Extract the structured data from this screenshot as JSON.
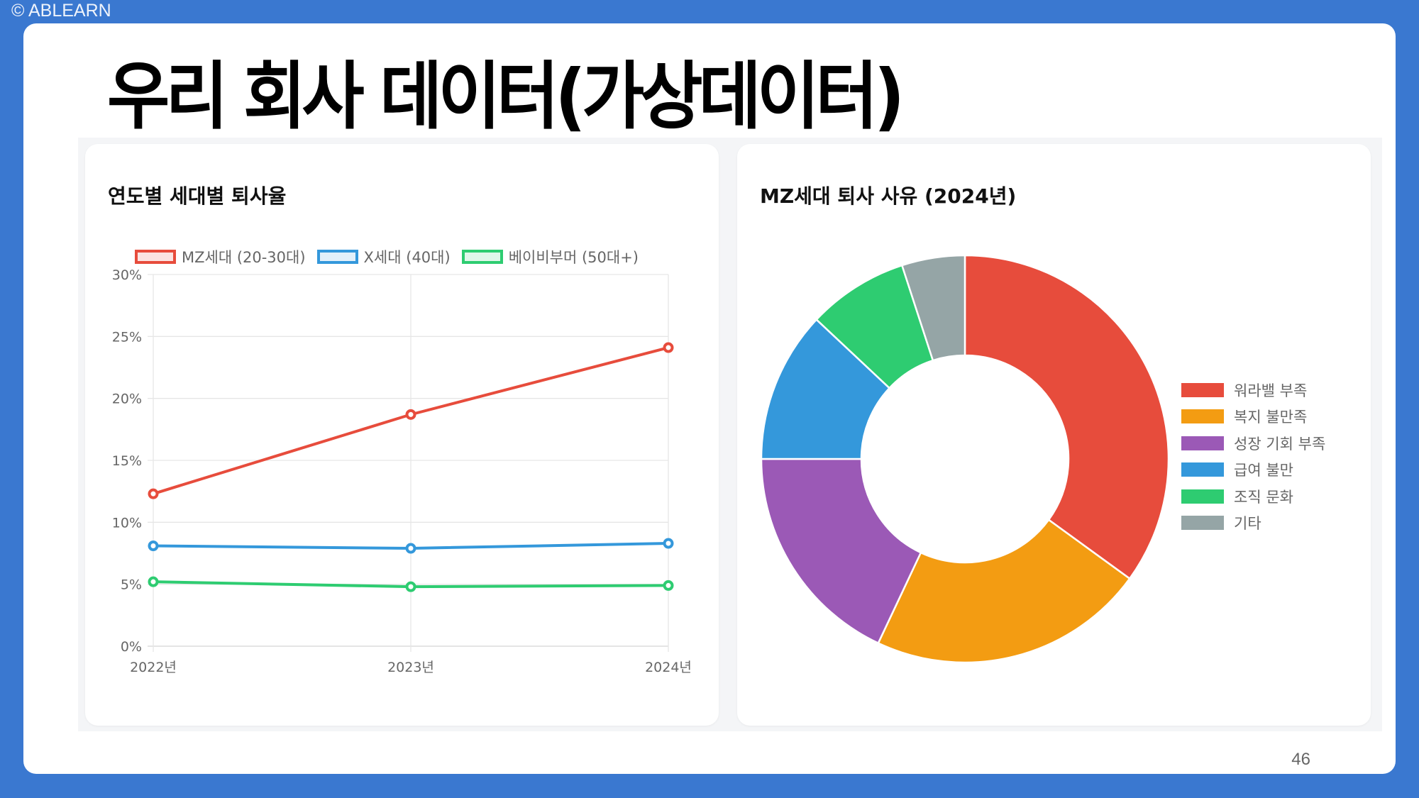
{
  "copyright": "© ABLEARN",
  "slide": {
    "title": "우리 회사 데이터(가상데이터)",
    "page_number": "46"
  },
  "colors": {
    "background": "#3a78d0",
    "red": "#e74c3c",
    "blue": "#3498db",
    "green": "#2ecc71",
    "orange": "#f39c12",
    "purple": "#9b59b6",
    "gray": "#95a5a6"
  },
  "left_card": {
    "title": "연도별 세대별 퇴사율",
    "legend": [
      {
        "label": "MZ세대 (20-30대)",
        "color": "#e74c3c",
        "fill": "#fbe3e1"
      },
      {
        "label": "X세대 (40대)",
        "color": "#3498db",
        "fill": "#e2f0fa"
      },
      {
        "label": "베이비부머 (50대+)",
        "color": "#2ecc71",
        "fill": "#e0f7ea"
      }
    ]
  },
  "right_card": {
    "title": "MZ세대 퇴사 사유 (2024년)"
  },
  "chart_data": [
    {
      "type": "line",
      "title": "연도별 세대별 퇴사율",
      "categories": [
        "2022년",
        "2023년",
        "2024년"
      ],
      "series": [
        {
          "name": "MZ세대 (20-30대)",
          "color": "#e74c3c",
          "values": [
            12.3,
            18.7,
            24.1
          ]
        },
        {
          "name": "X세대 (40대)",
          "color": "#3498db",
          "values": [
            8.1,
            7.9,
            8.3
          ]
        },
        {
          "name": "베이비부머 (50대+)",
          "color": "#2ecc71",
          "values": [
            5.2,
            4.8,
            4.9
          ]
        }
      ],
      "yticks": [
        "0%",
        "5%",
        "10%",
        "15%",
        "20%",
        "25%",
        "30%"
      ],
      "ylim": [
        0,
        30
      ],
      "xlabel": "",
      "ylabel": "",
      "grid": true,
      "legend_position": "top"
    },
    {
      "type": "pie",
      "variant": "doughnut",
      "title": "MZ세대 퇴사 사유 (2024년)",
      "categories": [
        "워라밸 부족",
        "복지 불만족",
        "성장 기회 부족",
        "급여 불만",
        "조직 문화",
        "기타"
      ],
      "values": [
        35,
        22,
        18,
        12,
        8,
        5
      ],
      "colors": [
        "#e74c3c",
        "#f39c12",
        "#9b59b6",
        "#3498db",
        "#2ecc71",
        "#95a5a6"
      ],
      "legend_position": "right"
    }
  ]
}
